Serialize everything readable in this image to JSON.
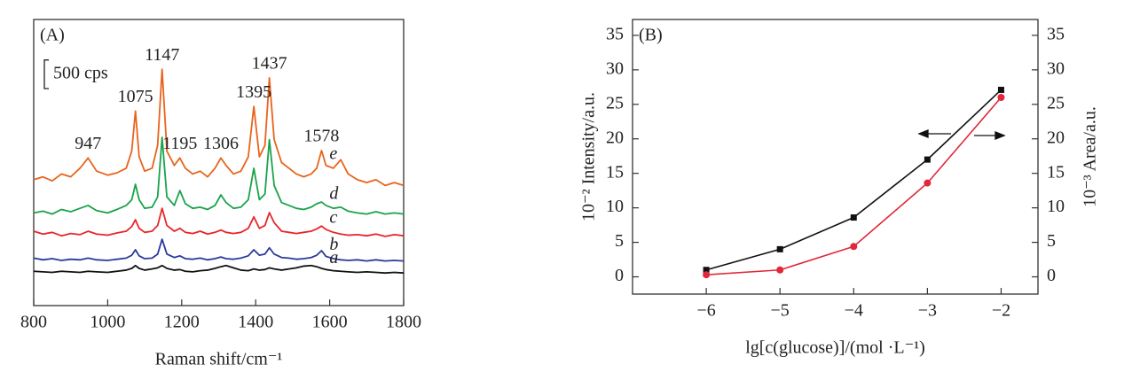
{
  "chart_data": [
    {
      "type": "line",
      "panel_label": "(A)",
      "x_label": "Raman shift/cm⁻¹",
      "xlim": [
        800,
        1800
      ],
      "xticks": [
        800,
        1000,
        1200,
        1400,
        1600,
        1800
      ],
      "ylim": [
        0,
        5000
      ],
      "scale_bar": {
        "value": 500,
        "label": "500 cps"
      },
      "peaks": [
        947,
        1075,
        1147,
        1195,
        1306,
        1395,
        1437,
        1578
      ],
      "x": [
        800,
        825,
        850,
        875,
        900,
        925,
        947,
        970,
        1000,
        1025,
        1050,
        1065,
        1075,
        1085,
        1100,
        1120,
        1135,
        1147,
        1160,
        1180,
        1195,
        1210,
        1230,
        1250,
        1270,
        1290,
        1306,
        1320,
        1340,
        1360,
        1380,
        1395,
        1410,
        1425,
        1437,
        1450,
        1470,
        1490,
        1510,
        1530,
        1550,
        1565,
        1578,
        1590,
        1610,
        1630,
        1650,
        1675,
        1700,
        1725,
        1750,
        1775,
        1800
      ],
      "series": [
        {
          "name": "e",
          "color": "#e8641c",
          "values": [
            2200,
            2250,
            2180,
            2300,
            2250,
            2400,
            2580,
            2350,
            2280,
            2320,
            2400,
            2700,
            3400,
            2600,
            2350,
            2400,
            2800,
            4130,
            2700,
            2450,
            2580,
            2400,
            2300,
            2350,
            2250,
            2400,
            2580,
            2450,
            2300,
            2350,
            2600,
            3480,
            2600,
            2800,
            3980,
            2900,
            2500,
            2400,
            2300,
            2250,
            2300,
            2400,
            2710,
            2450,
            2400,
            2550,
            2300,
            2200,
            2150,
            2200,
            2100,
            2150,
            2100
          ]
        },
        {
          "name": "d",
          "color": "#1aa34a",
          "values": [
            1620,
            1650,
            1600,
            1680,
            1640,
            1700,
            1750,
            1660,
            1620,
            1680,
            1750,
            1850,
            2120,
            1850,
            1700,
            1720,
            1900,
            2940,
            1900,
            1750,
            2010,
            1780,
            1700,
            1720,
            1680,
            1750,
            1935,
            1800,
            1700,
            1720,
            1850,
            2400,
            1850,
            1950,
            2900,
            2100,
            1800,
            1750,
            1700,
            1680,
            1720,
            1780,
            1810,
            1750,
            1700,
            1720,
            1650,
            1620,
            1600,
            1640,
            1600,
            1620,
            1600
          ]
        },
        {
          "name": "c",
          "color": "#e8262b",
          "values": [
            1300,
            1250,
            1280,
            1220,
            1260,
            1240,
            1300,
            1250,
            1230,
            1270,
            1300,
            1380,
            1500,
            1350,
            1280,
            1300,
            1400,
            1700,
            1400,
            1300,
            1350,
            1280,
            1260,
            1300,
            1250,
            1280,
            1320,
            1280,
            1260,
            1280,
            1350,
            1550,
            1350,
            1400,
            1625,
            1450,
            1300,
            1280,
            1260,
            1280,
            1300,
            1340,
            1390,
            1330,
            1280,
            1250,
            1230,
            1240,
            1220,
            1250,
            1210,
            1240,
            1220
          ]
        },
        {
          "name": "b",
          "color": "#2b3a9a",
          "values": [
            830,
            800,
            820,
            790,
            810,
            800,
            830,
            800,
            790,
            810,
            830,
            880,
            975,
            870,
            820,
            830,
            900,
            1160,
            900,
            840,
            870,
            820,
            810,
            830,
            800,
            820,
            850,
            820,
            810,
            830,
            870,
            975,
            880,
            900,
            1010,
            900,
            840,
            830,
            810,
            820,
            840,
            880,
            960,
            860,
            820,
            800,
            790,
            800,
            780,
            800,
            780,
            790,
            780
          ]
        },
        {
          "name": "a",
          "color": "#111111",
          "values": [
            600,
            590,
            580,
            600,
            590,
            580,
            600,
            590,
            580,
            600,
            620,
            650,
            700,
            650,
            620,
            640,
            660,
            700,
            650,
            620,
            630,
            600,
            590,
            610,
            620,
            650,
            680,
            700,
            660,
            620,
            610,
            640,
            620,
            630,
            660,
            640,
            620,
            640,
            660,
            690,
            700,
            680,
            650,
            630,
            610,
            600,
            590,
            580,
            590,
            580,
            570,
            580,
            570
          ]
        }
      ]
    },
    {
      "type": "line",
      "panel_label": "(B)",
      "x_label": "lg[c(glucose)]/(mol ·L⁻¹)",
      "y_label": "10⁻² Intensity/a.u.",
      "y2_label": "10⁻³ Area/a.u.",
      "xlim": [
        -7,
        -1.5
      ],
      "xticks": [
        {
          "value": -6,
          "label": "−6"
        },
        {
          "value": -5,
          "label": "−5"
        },
        {
          "value": -4,
          "label": "−4"
        },
        {
          "value": -3,
          "label": "−3"
        },
        {
          "value": -2,
          "label": "−2"
        }
      ],
      "ylim": [
        -2.5,
        37.3
      ],
      "yticks": [
        0,
        5,
        10,
        15,
        20,
        25,
        30,
        35
      ],
      "y2lim": [
        -2.5,
        37.3
      ],
      "y2ticks": [
        0,
        5,
        10,
        15,
        20,
        25,
        30,
        35
      ],
      "x": [
        -6,
        -5,
        -4,
        -3,
        -2
      ],
      "series": [
        {
          "color": "#111111",
          "marker": "square",
          "values": [
            1.0,
            4.0,
            8.6,
            17.0,
            27.1
          ]
        },
        {
          "color": "#e0283a",
          "marker": "circle",
          "axis": "y2",
          "values": [
            0.3,
            1.0,
            4.4,
            13.6,
            26.0
          ]
        }
      ]
    }
  ]
}
